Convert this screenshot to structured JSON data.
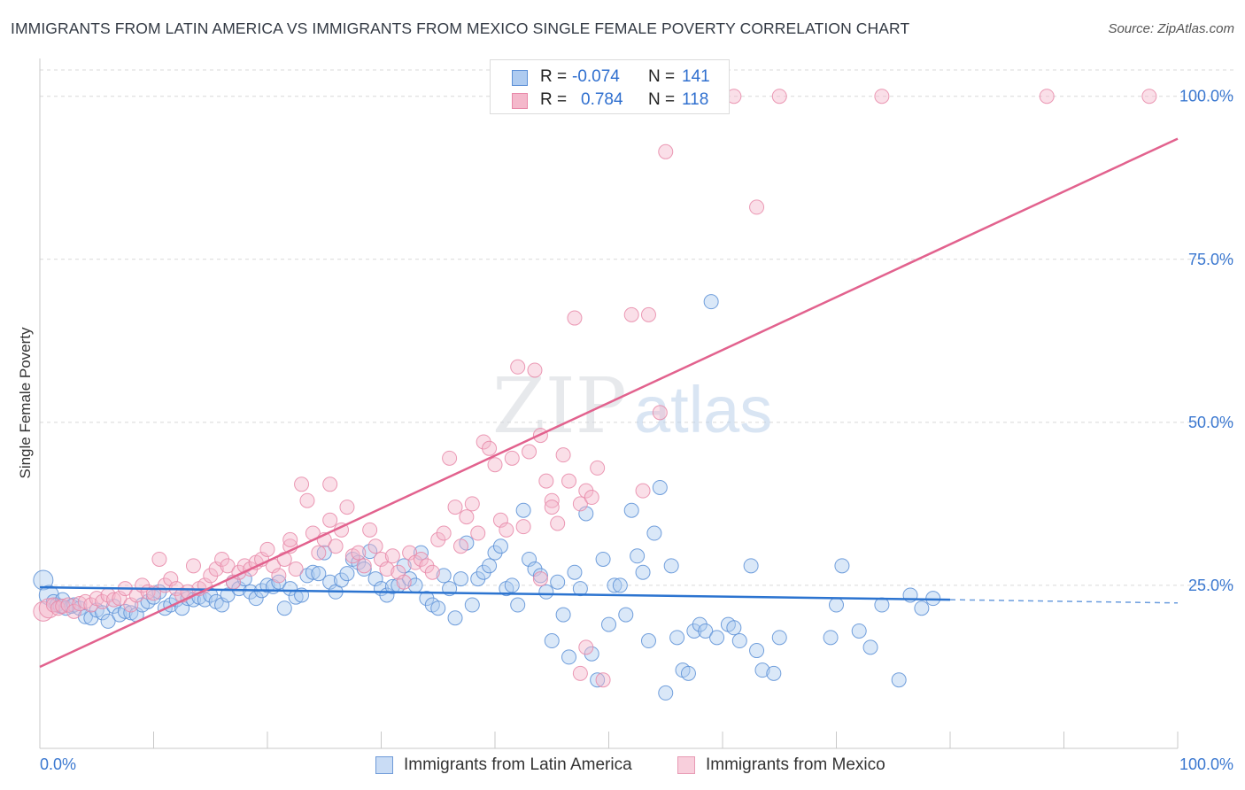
{
  "title": "IMMIGRANTS FROM LATIN AMERICA VS IMMIGRANTS FROM MEXICO SINGLE FEMALE POVERTY CORRELATION CHART",
  "source": "Source: ZipAtlas.com",
  "watermark": {
    "zip": "ZIP",
    "atlas": "atlas"
  },
  "colors": {
    "blue": "#5b8fd6",
    "blue_fill": "#aecbf0",
    "blue_line": "#2c74d0",
    "pink": "#e888a8",
    "pink_fill": "#f4b8cb",
    "pink_line": "#e2628e",
    "axis_label": "#3b78d0"
  },
  "legend": {
    "r_label": "R =",
    "n_label": "N =",
    "rows": [
      {
        "series": "blue",
        "r": "-0.074",
        "n": "141"
      },
      {
        "series": "pink",
        "r": "0.784",
        "n": "118"
      }
    ]
  },
  "chart_data": {
    "type": "scatter",
    "title": "IMMIGRANTS FROM LATIN AMERICA VS IMMIGRANTS FROM MEXICO SINGLE FEMALE POVERTY CORRELATION CHART",
    "xlabel": "",
    "ylabel": "Single Female Poverty",
    "xlim": [
      0,
      100
    ],
    "ylim": [
      0,
      102
    ],
    "x_ticks": [
      "0.0%",
      "100.0%"
    ],
    "y_ticks": [
      {
        "value": 25,
        "label": "25.0%"
      },
      {
        "value": 50,
        "label": "50.0%"
      },
      {
        "value": 75,
        "label": "75.0%"
      },
      {
        "value": 100,
        "label": "100.0%"
      }
    ],
    "grid": "dashed horizontal",
    "legend_position": "top-center and bottom",
    "series": [
      {
        "name": "Immigrants from Latin America",
        "color": "blue",
        "trend": {
          "x0": 0,
          "y0": 24.7,
          "x1": 80,
          "y1": 22.8,
          "dash_to": 100,
          "dash_y": 22.3
        },
        "points": [
          [
            0.3,
            25.8
          ],
          [
            0.8,
            23.5
          ],
          [
            1.2,
            22.5
          ],
          [
            1.5,
            22.0
          ],
          [
            1.8,
            21.8
          ],
          [
            2.0,
            22.8
          ],
          [
            2.3,
            21.5
          ],
          [
            2.8,
            21.8
          ],
          [
            3.0,
            22.0
          ],
          [
            3.5,
            21.5
          ],
          [
            4.0,
            20.2
          ],
          [
            4.5,
            20.0
          ],
          [
            5.0,
            21.2
          ],
          [
            5.5,
            20.8
          ],
          [
            6.0,
            19.5
          ],
          [
            6.5,
            21.8
          ],
          [
            7.0,
            20.5
          ],
          [
            7.5,
            21.0
          ],
          [
            8.0,
            20.8
          ],
          [
            8.5,
            20.5
          ],
          [
            9.0,
            22.0
          ],
          [
            9.5,
            22.5
          ],
          [
            10.0,
            23.2
          ],
          [
            10.5,
            24.0
          ],
          [
            11.0,
            21.5
          ],
          [
            11.5,
            22.0
          ],
          [
            12.0,
            22.8
          ],
          [
            12.5,
            21.5
          ],
          [
            13.0,
            23.0
          ],
          [
            13.5,
            22.8
          ],
          [
            14.0,
            23.2
          ],
          [
            14.5,
            22.8
          ],
          [
            15.0,
            23.5
          ],
          [
            15.5,
            22.5
          ],
          [
            16.0,
            22.0
          ],
          [
            16.5,
            23.5
          ],
          [
            17.0,
            25.5
          ],
          [
            17.5,
            24.5
          ],
          [
            18.0,
            26.0
          ],
          [
            18.5,
            24.0
          ],
          [
            19.0,
            23.0
          ],
          [
            19.5,
            24.2
          ],
          [
            20.0,
            25.0
          ],
          [
            20.5,
            24.8
          ],
          [
            21.0,
            25.5
          ],
          [
            21.5,
            21.5
          ],
          [
            22.0,
            24.5
          ],
          [
            22.5,
            23.2
          ],
          [
            23.0,
            23.5
          ],
          [
            23.5,
            26.5
          ],
          [
            24.0,
            27.0
          ],
          [
            24.5,
            26.8
          ],
          [
            25.0,
            30.0
          ],
          [
            25.5,
            25.5
          ],
          [
            26.0,
            24.0
          ],
          [
            26.5,
            25.8
          ],
          [
            27.0,
            26.8
          ],
          [
            27.5,
            29.0
          ],
          [
            28.0,
            28.5
          ],
          [
            28.5,
            27.5
          ],
          [
            29.0,
            30.2
          ],
          [
            29.5,
            26.0
          ],
          [
            30.0,
            24.5
          ],
          [
            30.5,
            23.5
          ],
          [
            31.0,
            24.8
          ],
          [
            31.5,
            25.0
          ],
          [
            32.0,
            28.0
          ],
          [
            32.5,
            26.0
          ],
          [
            33.0,
            25.0
          ],
          [
            33.5,
            30.0
          ],
          [
            34.0,
            23.0
          ],
          [
            34.5,
            22.0
          ],
          [
            35.0,
            21.5
          ],
          [
            35.5,
            26.5
          ],
          [
            36.0,
            24.5
          ],
          [
            36.5,
            20.0
          ],
          [
            37.0,
            26.0
          ],
          [
            37.5,
            31.5
          ],
          [
            38.0,
            22.0
          ],
          [
            38.5,
            26.0
          ],
          [
            39.0,
            27.0
          ],
          [
            39.5,
            28.0
          ],
          [
            40.0,
            30.0
          ],
          [
            40.5,
            31.0
          ],
          [
            41.0,
            24.5
          ],
          [
            41.5,
            25.0
          ],
          [
            42.0,
            22.0
          ],
          [
            42.5,
            36.5
          ],
          [
            43.0,
            29.0
          ],
          [
            43.5,
            27.5
          ],
          [
            44.0,
            26.5
          ],
          [
            44.5,
            24.0
          ],
          [
            45.0,
            16.5
          ],
          [
            45.5,
            25.5
          ],
          [
            46.0,
            20.5
          ],
          [
            46.5,
            14.0
          ],
          [
            47.0,
            27.0
          ],
          [
            47.5,
            24.5
          ],
          [
            48.0,
            36.0
          ],
          [
            48.5,
            14.5
          ],
          [
            49.0,
            10.5
          ],
          [
            49.5,
            29.0
          ],
          [
            50.0,
            19.0
          ],
          [
            50.5,
            25.0
          ],
          [
            51.0,
            25.0
          ],
          [
            51.5,
            20.5
          ],
          [
            52.0,
            36.5
          ],
          [
            52.5,
            29.5
          ],
          [
            53.0,
            27.0
          ],
          [
            53.5,
            16.5
          ],
          [
            54.0,
            33.0
          ],
          [
            54.5,
            40.0
          ],
          [
            55.0,
            8.5
          ],
          [
            55.5,
            28.0
          ],
          [
            56.0,
            17.0
          ],
          [
            56.5,
            12.0
          ],
          [
            57.0,
            11.5
          ],
          [
            57.5,
            18.0
          ],
          [
            58.0,
            19.0
          ],
          [
            58.5,
            18.0
          ],
          [
            59.0,
            68.5
          ],
          [
            59.5,
            17.0
          ],
          [
            60.5,
            19.0
          ],
          [
            61.0,
            18.5
          ],
          [
            61.5,
            16.5
          ],
          [
            62.5,
            28.0
          ],
          [
            63.0,
            15.0
          ],
          [
            63.5,
            12.0
          ],
          [
            64.5,
            11.5
          ],
          [
            65.0,
            17.0
          ],
          [
            70.0,
            22.0
          ],
          [
            70.5,
            28.0
          ],
          [
            72.0,
            18.0
          ],
          [
            73.0,
            15.5
          ],
          [
            74.0,
            22.0
          ],
          [
            75.5,
            10.5
          ],
          [
            77.5,
            21.5
          ],
          [
            78.5,
            23.0
          ],
          [
            76.5,
            23.5
          ],
          [
            69.5,
            17.0
          ]
        ]
      },
      {
        "name": "Immigrants from Mexico",
        "color": "pink",
        "trend": {
          "x0": 0,
          "y0": 12.5,
          "x1": 100,
          "y1": 93.5
        },
        "points": [
          [
            0.3,
            21.0
          ],
          [
            0.8,
            21.5
          ],
          [
            1.2,
            22.0
          ],
          [
            1.6,
            21.5
          ],
          [
            2.0,
            21.8
          ],
          [
            2.5,
            22.0
          ],
          [
            3.0,
            21.0
          ],
          [
            3.5,
            22.2
          ],
          [
            4.0,
            22.5
          ],
          [
            4.5,
            22.0
          ],
          [
            5.0,
            23.0
          ],
          [
            5.5,
            22.5
          ],
          [
            6.0,
            23.5
          ],
          [
            6.5,
            22.8
          ],
          [
            7.0,
            23.0
          ],
          [
            7.5,
            24.5
          ],
          [
            8.0,
            22.0
          ],
          [
            8.5,
            23.5
          ],
          [
            9.0,
            25.0
          ],
          [
            9.5,
            24.0
          ],
          [
            10.0,
            23.8
          ],
          [
            10.5,
            29.0
          ],
          [
            11.0,
            25.0
          ],
          [
            11.5,
            26.0
          ],
          [
            12.0,
            24.5
          ],
          [
            12.5,
            23.5
          ],
          [
            13.0,
            24.0
          ],
          [
            13.5,
            28.0
          ],
          [
            14.0,
            24.5
          ],
          [
            14.5,
            25.0
          ],
          [
            15.0,
            26.5
          ],
          [
            15.5,
            27.5
          ],
          [
            16.0,
            29.0
          ],
          [
            16.5,
            28.0
          ],
          [
            17.0,
            25.5
          ],
          [
            17.5,
            27.0
          ],
          [
            18.0,
            28.0
          ],
          [
            18.5,
            27.5
          ],
          [
            19.0,
            28.5
          ],
          [
            19.5,
            29.0
          ],
          [
            20.0,
            30.5
          ],
          [
            20.5,
            28.0
          ],
          [
            21.0,
            26.5
          ],
          [
            21.5,
            29.0
          ],
          [
            22.0,
            31.0
          ],
          [
            22.5,
            27.5
          ],
          [
            23.0,
            40.5
          ],
          [
            23.5,
            38.0
          ],
          [
            24.0,
            33.0
          ],
          [
            24.5,
            30.0
          ],
          [
            25.0,
            32.0
          ],
          [
            25.5,
            35.0
          ],
          [
            26.0,
            31.0
          ],
          [
            26.5,
            33.5
          ],
          [
            27.0,
            37.0
          ],
          [
            27.5,
            29.5
          ],
          [
            28.0,
            30.0
          ],
          [
            28.5,
            28.0
          ],
          [
            29.0,
            33.5
          ],
          [
            29.5,
            31.0
          ],
          [
            30.0,
            29.0
          ],
          [
            30.5,
            27.5
          ],
          [
            31.0,
            29.5
          ],
          [
            31.5,
            27.0
          ],
          [
            32.0,
            25.5
          ],
          [
            32.5,
            30.0
          ],
          [
            33.0,
            28.5
          ],
          [
            33.5,
            29.0
          ],
          [
            34.0,
            28.0
          ],
          [
            34.5,
            27.0
          ],
          [
            35.0,
            32.0
          ],
          [
            35.5,
            33.0
          ],
          [
            36.0,
            44.5
          ],
          [
            36.5,
            37.0
          ],
          [
            37.0,
            31.0
          ],
          [
            37.5,
            35.5
          ],
          [
            38.0,
            37.5
          ],
          [
            38.5,
            33.0
          ],
          [
            39.0,
            47.0
          ],
          [
            39.5,
            46.0
          ],
          [
            40.0,
            43.5
          ],
          [
            40.5,
            35.0
          ],
          [
            41.0,
            33.5
          ],
          [
            41.5,
            44.5
          ],
          [
            42.0,
            58.5
          ],
          [
            42.5,
            34.0
          ],
          [
            43.0,
            45.5
          ],
          [
            43.5,
            58.0
          ],
          [
            44.0,
            48.0
          ],
          [
            44.5,
            41.0
          ],
          [
            45.0,
            38.0
          ],
          [
            45.5,
            34.5
          ],
          [
            46.0,
            45.0
          ],
          [
            46.5,
            41.0
          ],
          [
            47.0,
            66.0
          ],
          [
            47.5,
            37.5
          ],
          [
            48.0,
            39.5
          ],
          [
            48.5,
            38.5
          ],
          [
            49.0,
            43.0
          ],
          [
            49.5,
            10.5
          ],
          [
            52.0,
            66.5
          ],
          [
            53.5,
            66.5
          ],
          [
            53.0,
            39.5
          ],
          [
            54.5,
            51.5
          ],
          [
            55.0,
            91.5
          ],
          [
            57.0,
            100.0
          ],
          [
            61.0,
            100.0
          ],
          [
            63.0,
            83.0
          ],
          [
            65.0,
            100.0
          ],
          [
            74.0,
            100.0
          ],
          [
            88.5,
            100.0
          ],
          [
            97.5,
            100.0
          ],
          [
            48.0,
            15.5
          ],
          [
            47.5,
            11.5
          ],
          [
            44.0,
            26.0
          ],
          [
            45.0,
            37.0
          ],
          [
            22.0,
            32.0
          ],
          [
            25.5,
            40.5
          ]
        ]
      }
    ]
  },
  "bottom_legend": [
    {
      "series": "blue",
      "label": "Immigrants from Latin America"
    },
    {
      "series": "pink",
      "label": "Immigrants from Mexico"
    }
  ]
}
